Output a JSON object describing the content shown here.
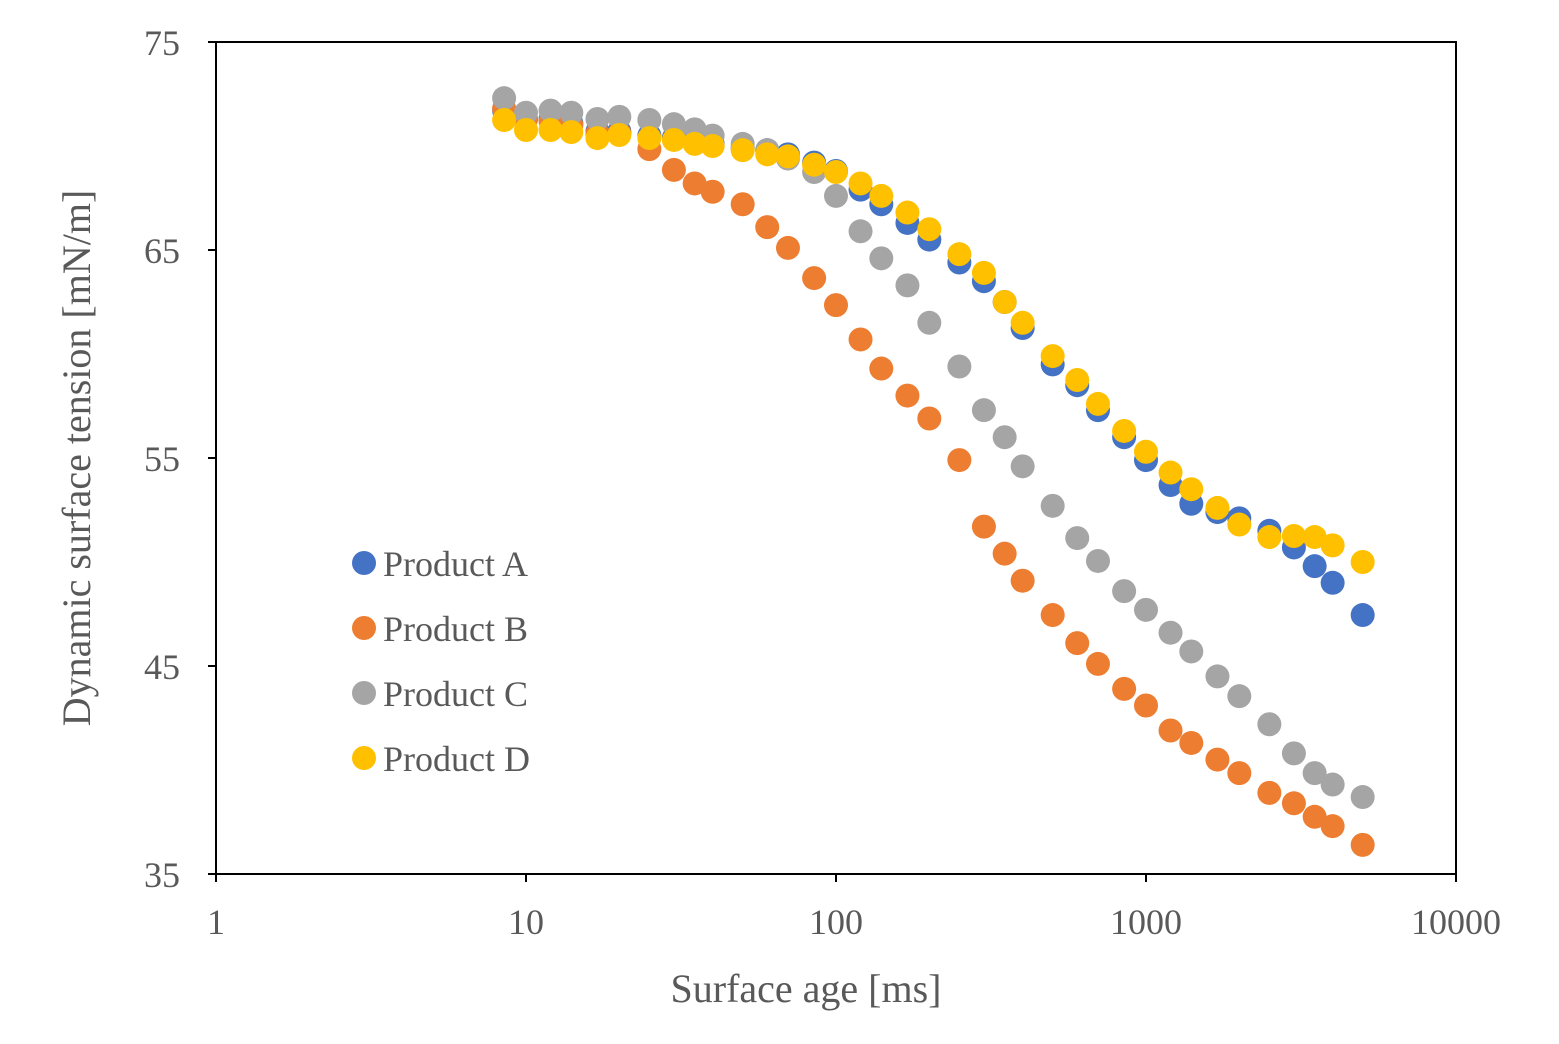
{
  "chart_data": {
    "type": "scatter",
    "title": "",
    "xlabel": "Surface age [ms]",
    "ylabel": "Dynamic surface tension [mN/m]",
    "xscale": "log",
    "xlim": [
      1,
      10000
    ],
    "ylim": [
      35,
      75
    ],
    "xticks": [
      "1",
      "10",
      "100",
      "1000",
      "10000"
    ],
    "yticks": [
      "35",
      "45",
      "55",
      "65",
      "75"
    ],
    "grid": false,
    "legend": "left-middle",
    "x": [
      8.5,
      10,
      12,
      14,
      17,
      20,
      25,
      30,
      35,
      40,
      50,
      60,
      70,
      85,
      100,
      120,
      140,
      170,
      200,
      250,
      300,
      350,
      400,
      500,
      600,
      700,
      850,
      1000,
      1200,
      1400,
      1700,
      2000,
      2500,
      3000,
      3500,
      4000,
      5000
    ],
    "series": [
      {
        "name": "Product A",
        "color": "#4472C4",
        "values": [
          71.7,
          71.3,
          71.3,
          71.1,
          70.7,
          70.7,
          70.5,
          70.4,
          70.3,
          70.1,
          69.9,
          69.8,
          69.6,
          69.2,
          68.8,
          67.9,
          67.2,
          66.3,
          65.5,
          64.4,
          63.5,
          62.5,
          61.25,
          59.5,
          58.5,
          57.3,
          56.0,
          54.9,
          53.7,
          52.8,
          52.4,
          52.1,
          51.5,
          50.7,
          49.8,
          49.0,
          47.45
        ]
      },
      {
        "name": "Product B",
        "color": "#ED7D31",
        "values": [
          71.8,
          71.3,
          71.2,
          71.0,
          70.6,
          70.6,
          69.85,
          68.85,
          68.2,
          67.8,
          67.2,
          66.1,
          65.1,
          63.65,
          62.35,
          60.7,
          59.3,
          58.0,
          56.9,
          54.9,
          51.7,
          50.4,
          49.1,
          47.45,
          46.1,
          45.1,
          43.9,
          43.1,
          41.9,
          41.3,
          40.5,
          39.85,
          38.9,
          38.4,
          37.75,
          37.3,
          36.4
        ]
      },
      {
        "name": "Product C",
        "color": "#A5A5A5",
        "values": [
          72.3,
          71.6,
          71.7,
          71.6,
          71.3,
          71.4,
          71.25,
          71.05,
          70.8,
          70.5,
          70.1,
          69.8,
          69.4,
          68.75,
          67.6,
          65.9,
          64.6,
          63.3,
          61.5,
          59.4,
          57.3,
          56.0,
          54.6,
          52.7,
          51.15,
          50.05,
          48.6,
          47.7,
          46.6,
          45.7,
          44.5,
          43.55,
          42.2,
          40.8,
          39.85,
          39.3,
          38.7
        ]
      },
      {
        "name": "Product D",
        "color": "#FFC000",
        "values": [
          71.25,
          70.77,
          70.77,
          70.67,
          70.38,
          70.53,
          70.38,
          70.29,
          70.1,
          70.0,
          69.8,
          69.6,
          69.5,
          69.1,
          68.75,
          68.2,
          67.6,
          66.8,
          66.0,
          64.8,
          63.9,
          62.5,
          61.5,
          59.9,
          58.75,
          57.6,
          56.3,
          55.3,
          54.3,
          53.5,
          52.6,
          51.8,
          51.2,
          51.25,
          51.2,
          50.8,
          50.0
        ]
      }
    ]
  }
}
